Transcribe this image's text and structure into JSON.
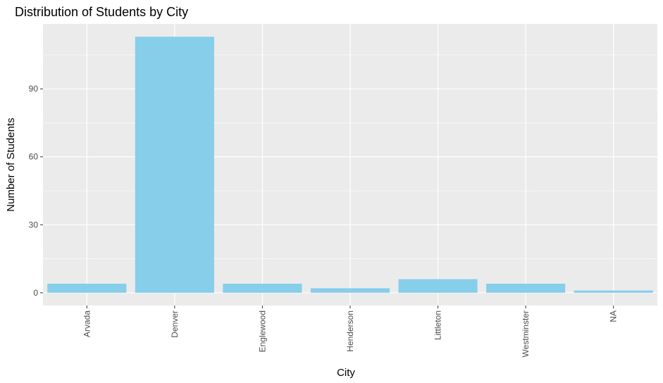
{
  "chart_data": {
    "type": "bar",
    "title": "Distribution of Students by City",
    "xlabel": "City",
    "ylabel": "Number of Students",
    "categories": [
      "Arvada",
      "Denver",
      "Englewood",
      "Henderson",
      "Littleton",
      "Westminster",
      "NA"
    ],
    "values": [
      4,
      113,
      4,
      2,
      6,
      4,
      1
    ],
    "y_ticks": [
      0,
      30,
      60,
      90
    ],
    "ylim": [
      -5.65,
      118.65
    ],
    "grid": true,
    "legend": "none",
    "bar_color": "#87CEEB",
    "panel_background": "#EBEBEB",
    "grid_color": "#FFFFFF"
  }
}
